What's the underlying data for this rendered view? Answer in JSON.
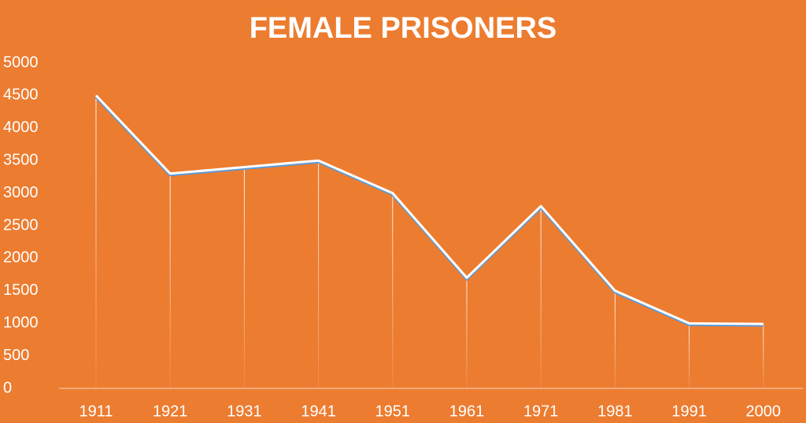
{
  "chart_data": {
    "type": "line",
    "title": "FEMALE PRISONERS",
    "categories": [
      "1911",
      "1921",
      "1931",
      "1941",
      "1951",
      "1961",
      "1971",
      "1981",
      "1991",
      "2000"
    ],
    "values": [
      4500,
      3300,
      3400,
      3500,
      3000,
      1700,
      2800,
      1500,
      1000,
      990
    ],
    "color": "#ffffff",
    "drop_lines": true,
    "ylim": [
      0,
      5000
    ],
    "yticks": [
      0,
      500,
      1000,
      1500,
      2000,
      2500,
      3000,
      3500,
      4000,
      4500,
      5000
    ]
  }
}
